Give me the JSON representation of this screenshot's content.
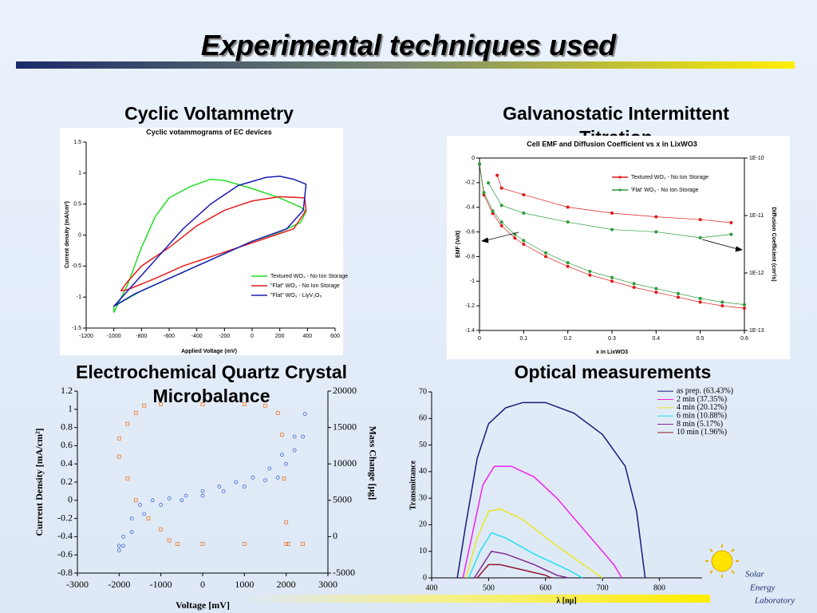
{
  "slide": {
    "title": "Experimental techniques used",
    "logo": [
      "Solar",
      "Energy",
      "Laboratory"
    ]
  },
  "chart_data": [
    {
      "type": "line",
      "heading": "Cyclic Voltammetry",
      "title": "Cyclic votammograms of EC devices",
      "x_label": "Applied Voltage (mV)",
      "y_label": "Current density (mA/cm²)",
      "xlim": [
        -1200,
        600
      ],
      "xticks": [
        -1200,
        -1000,
        -800,
        -600,
        -400,
        -200,
        0,
        200,
        400,
        600
      ],
      "ylim": [
        -1.5,
        1.5
      ],
      "yticks": [
        -1.5,
        -1,
        -0.5,
        0,
        0.5,
        1,
        1.5
      ],
      "series": [
        {
          "name": "Textured WO₃ - No Ion Storage",
          "color": "#22dd22",
          "marker": "none",
          "x": [
            -1000,
            -900,
            -800,
            -700,
            -600,
            -450,
            -300,
            -200,
            0,
            200,
            350,
            390,
            350,
            200,
            0,
            -200,
            -400,
            -600,
            -800,
            -1000,
            -1000
          ],
          "values": [
            -1.25,
            -0.8,
            -0.2,
            0.3,
            0.6,
            0.78,
            0.9,
            0.88,
            0.75,
            0.6,
            0.45,
            0.38,
            0.2,
            0.05,
            -0.1,
            -0.3,
            -0.5,
            -0.7,
            -0.9,
            -1.15,
            -1.25
          ]
        },
        {
          "name": "\"Flat\" WO₃ - No Ion Storage",
          "color": "#e81c1c",
          "marker": "none",
          "x": [
            -950,
            -900,
            -800,
            -600,
            -400,
            -200,
            0,
            200,
            380,
            390,
            300,
            100,
            -100,
            -300,
            -500,
            -700,
            -900,
            -950
          ],
          "values": [
            -0.9,
            -0.75,
            -0.5,
            -0.2,
            0.15,
            0.4,
            0.55,
            0.62,
            0.6,
            0.4,
            0.1,
            -0.05,
            -0.2,
            -0.35,
            -0.5,
            -0.7,
            -0.88,
            -0.9
          ]
        },
        {
          "name": "\"Flat\" WO₃ - LiyV₂O₅",
          "color": "#1a1ab8",
          "marker": "none",
          "x": [
            -1000,
            -900,
            -700,
            -500,
            -300,
            -100,
            100,
            200,
            300,
            390,
            370,
            250,
            0,
            -300,
            -600,
            -850,
            -1000
          ],
          "values": [
            -1.15,
            -0.9,
            -0.4,
            0.1,
            0.5,
            0.8,
            0.93,
            0.95,
            0.9,
            0.82,
            0.4,
            0.1,
            -0.1,
            -0.4,
            -0.7,
            -0.95,
            -1.15
          ]
        }
      ]
    },
    {
      "type": "line",
      "heading": "Galvanostatic Intermittent Titration",
      "title": "Cell EMF and Diffusion Coefficient vs x in LixWO3",
      "x_label": "x in LixWO3",
      "y_label": "EMF (Volt)",
      "y2_label": "Diffusion Coefficient (cm²/s)",
      "xlim": [
        0,
        0.6
      ],
      "xticks": [
        0,
        0.1,
        0.2,
        0.3,
        0.4,
        0.5,
        0.6
      ],
      "ylim": [
        -1.4,
        0
      ],
      "yticks": [
        -1.4,
        -1.2,
        -1,
        -0.8,
        -0.6,
        -0.4,
        -0.2,
        0
      ],
      "y2lim": [
        1e-13,
        1e-10
      ],
      "y2log": true,
      "y2ticks": [
        {
          "value": 1e-13,
          "label": "1E-13"
        },
        {
          "value": 1e-12,
          "label": "1E-12"
        },
        {
          "value": 1e-11,
          "label": "1E-11"
        },
        {
          "value": 1e-10,
          "label": "1E-10"
        }
      ],
      "series": [
        {
          "name": "Textured WO₃ - No Ion Storage",
          "color": "#e01818",
          "marker": "circle",
          "x": [
            0,
            0.01,
            0.03,
            0.05,
            0.08,
            0.1,
            0.15,
            0.2,
            0.25,
            0.3,
            0.35,
            0.4,
            0.45,
            0.5,
            0.55,
            0.6
          ],
          "values": [
            -0.05,
            -0.3,
            -0.45,
            -0.55,
            -0.65,
            -0.7,
            -0.8,
            -0.88,
            -0.95,
            -1.0,
            -1.05,
            -1.09,
            -1.13,
            -1.17,
            -1.2,
            -1.22
          ]
        },
        {
          "name": "'Flat' WO₃ - No Ion Storage",
          "color": "#2a9a3a",
          "marker": "circle",
          "x": [
            0,
            0.01,
            0.03,
            0.05,
            0.08,
            0.1,
            0.15,
            0.2,
            0.25,
            0.3,
            0.35,
            0.4,
            0.45,
            0.5,
            0.55,
            0.6
          ],
          "values": [
            -0.05,
            -0.28,
            -0.43,
            -0.52,
            -0.62,
            -0.67,
            -0.77,
            -0.85,
            -0.92,
            -0.97,
            -1.02,
            -1.06,
            -1.1,
            -1.14,
            -1.17,
            -1.19
          ]
        },
        {
          "color": "#e01818",
          "marker": "circle",
          "axis": "y2",
          "x": [
            0.04,
            0.05,
            0.1,
            0.2,
            0.3,
            0.4,
            0.5,
            0.57
          ],
          "values": [
            5e-11,
            3e-11,
            2.3e-11,
            1.4e-11,
            1.1e-11,
            9.5e-12,
            8.5e-12,
            7.5e-12
          ]
        },
        {
          "color": "#2a9a3a",
          "marker": "circle",
          "axis": "y2",
          "x": [
            0.02,
            0.05,
            0.1,
            0.2,
            0.3,
            0.4,
            0.5,
            0.57
          ],
          "values": [
            3.7e-11,
            1.5e-11,
            1.1e-11,
            7.7e-12,
            5.7e-12,
            5.2e-12,
            4.1e-12,
            4.7e-12
          ]
        }
      ]
    },
    {
      "type": "scatter",
      "heading": "Electrochemical Quartz Crystal Microbalance",
      "x_label": "Voltage [mV]",
      "y_label": "Current Density [mA/cm²]",
      "y2_label": "Mass Change [μg]",
      "xlim": [
        -3000,
        3000
      ],
      "xticks": [
        -3000,
        -2000,
        -1000,
        0,
        1000,
        2000,
        3000
      ],
      "ylim": [
        -0.8,
        1.2
      ],
      "yticks": [
        -0.8,
        -0.6,
        -0.4,
        -0.2,
        0,
        0.2,
        0.4,
        0.6,
        0.8,
        1,
        1.2
      ],
      "y2lim": [
        -5000,
        20000
      ],
      "y2ticks": [
        -5000,
        0,
        5000,
        10000,
        15000,
        20000
      ],
      "series": [
        {
          "color": "#3a66d8",
          "marker": "circle",
          "x": [
            -2000,
            -1900,
            -1700,
            -1500,
            -1200,
            -800,
            -400,
            0,
            400,
            800,
            1200,
            1600,
            1900,
            2200,
            2450,
            2400,
            2200,
            2000,
            1800,
            1500,
            1000,
            500,
            0,
            -500,
            -1000,
            -1400,
            -1700,
            -1900,
            -2000
          ],
          "values": [
            -0.5,
            -0.4,
            -0.2,
            -0.05,
            0,
            0.02,
            0.05,
            0.1,
            0.15,
            0.2,
            0.25,
            0.35,
            0.5,
            0.7,
            0.95,
            0.7,
            0.55,
            0.4,
            0.25,
            0.22,
            0.15,
            0.1,
            0.05,
            0,
            -0.05,
            -0.15,
            -0.35,
            -0.5,
            -0.55
          ]
        },
        {
          "color": "#f07828",
          "marker": "square",
          "axis": "y2",
          "x": [
            -2000,
            -1800,
            -1600,
            -1400,
            -1000,
            0,
            1000,
            1500,
            1800,
            1900,
            1950,
            2000,
            2050,
            2400,
            2000,
            1000,
            0,
            -600,
            -800,
            -1000,
            -1300,
            -1600,
            -1800,
            -2000
          ],
          "values": [
            13500,
            15500,
            17000,
            18000,
            18200,
            18200,
            18200,
            18000,
            17000,
            14000,
            8000,
            2000,
            -1000,
            -1000,
            -1000,
            -1000,
            -1000,
            -1000,
            -500,
            1000,
            2500,
            5000,
            8000,
            11000
          ]
        }
      ]
    },
    {
      "type": "line",
      "heading": "Optical measurements",
      "x_label": "λ [nμ]",
      "y_label": "Transmittance",
      "xlim": [
        400,
        875
      ],
      "xticks": [
        400,
        500,
        600,
        700,
        800
      ],
      "ylim": [
        0,
        70
      ],
      "yticks": [
        0,
        10,
        20,
        30,
        40,
        50,
        60,
        70
      ],
      "series": [
        {
          "name": "as prep. (63.43%)",
          "color": "#1a1a7a",
          "marker": "none",
          "x": [
            445,
            460,
            480,
            500,
            530,
            560,
            600,
            650,
            700,
            740,
            760,
            775
          ],
          "values": [
            0,
            20,
            45,
            58,
            64,
            66,
            66,
            62,
            54,
            42,
            25,
            0
          ]
        },
        {
          "name": "2 min (37.35%)",
          "color": "#ee22ee",
          "marker": "none",
          "x": [
            455,
            470,
            490,
            510,
            540,
            580,
            620,
            660,
            700,
            720,
            734
          ],
          "values": [
            0,
            15,
            35,
            42,
            42,
            38,
            30,
            20,
            10,
            5,
            0
          ]
        },
        {
          "name": "4 min (20.12%)",
          "color": "#e8e828",
          "marker": "none",
          "x": [
            460,
            480,
            500,
            520,
            560,
            620,
            680,
            700
          ],
          "values": [
            0,
            15,
            25,
            26,
            22,
            12,
            3,
            0
          ]
        },
        {
          "name": "6 min (10.88%)",
          "color": "#22e0f0",
          "marker": "none",
          "x": [
            465,
            485,
            505,
            530,
            580,
            640,
            665
          ],
          "values": [
            0,
            10,
            17,
            15,
            9,
            3,
            0
          ]
        },
        {
          "name": "8 min (5.17%)",
          "color": "#802890",
          "marker": "none",
          "x": [
            475,
            490,
            505,
            530,
            580,
            620,
            640
          ],
          "values": [
            0,
            5,
            10,
            9,
            5,
            1,
            0
          ]
        },
        {
          "name": "10 min (1.96%)",
          "color": "#901830",
          "marker": "none",
          "x": [
            480,
            500,
            520,
            560,
            600,
            610
          ],
          "values": [
            0,
            5,
            5,
            3,
            1,
            0
          ]
        }
      ]
    }
  ]
}
